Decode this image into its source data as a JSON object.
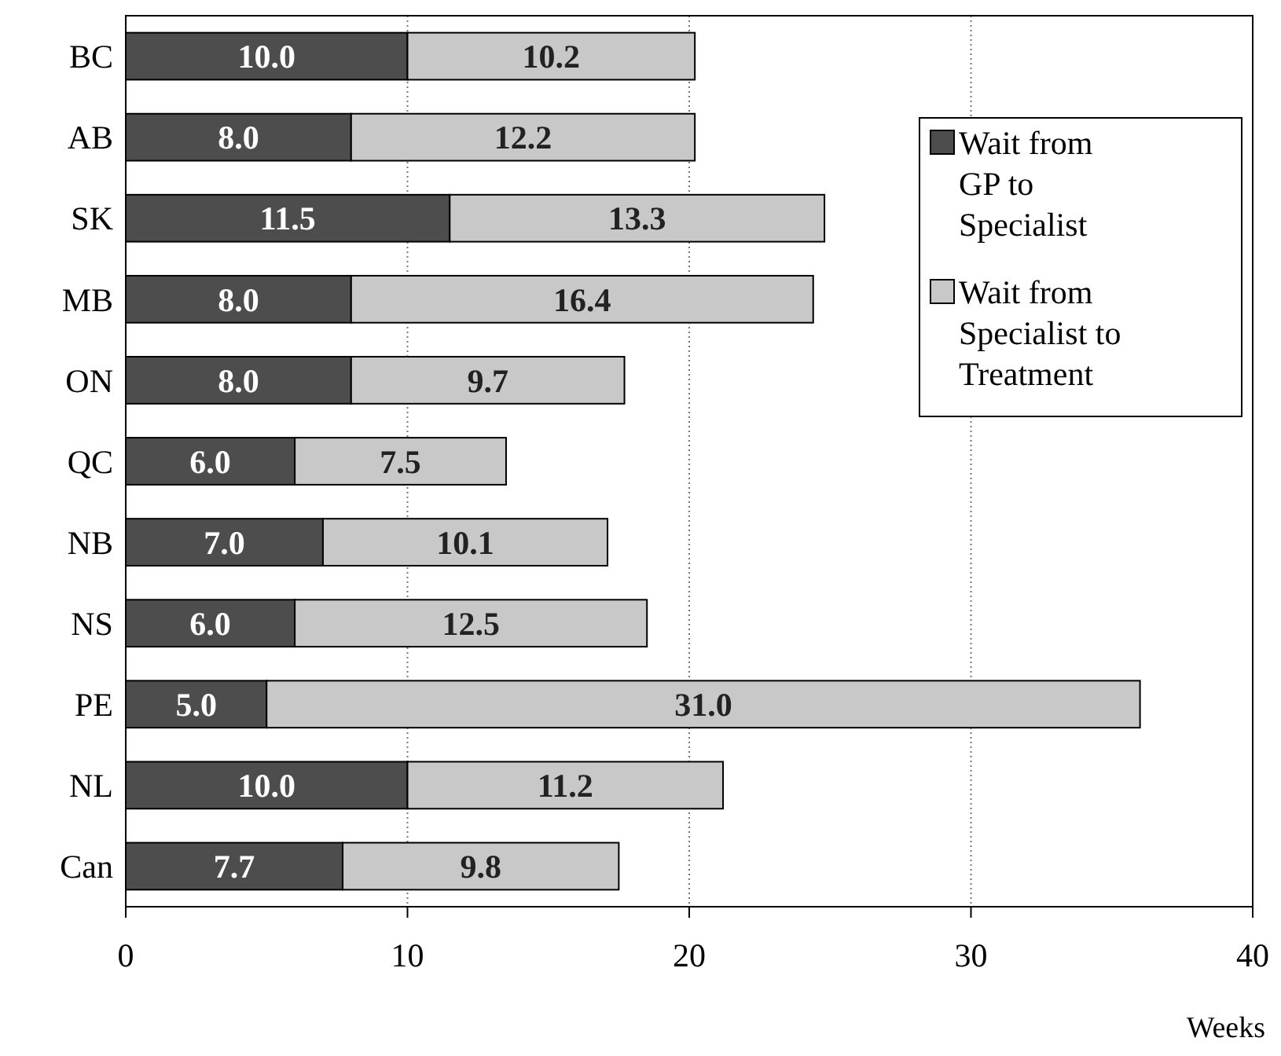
{
  "chart_data": {
    "type": "bar",
    "orientation": "horizontal",
    "stacked": true,
    "xlabel": "Weeks",
    "categories": [
      "BC",
      "AB",
      "SK",
      "MB",
      "ON",
      "QC",
      "NB",
      "NS",
      "PE",
      "NL",
      "Can"
    ],
    "series": [
      {
        "name": "Wait from GP to Specialist",
        "color": "#4d4d4d",
        "values": [
          10.0,
          8.0,
          11.5,
          8.0,
          8.0,
          6.0,
          7.0,
          6.0,
          5.0,
          10.0,
          7.7
        ],
        "value_labels": [
          "10.0",
          "8.0",
          "11.5",
          "8.0",
          "8.0",
          "6.0",
          "7.0",
          "6.0",
          "5.0",
          "10.0",
          "7.7"
        ]
      },
      {
        "name": "Wait from Specialist to Treatment",
        "color": "#c8c8c8",
        "values": [
          10.2,
          12.2,
          13.3,
          16.4,
          9.7,
          7.5,
          10.1,
          12.5,
          31.0,
          11.2,
          9.8
        ],
        "value_labels": [
          "10.2",
          "12.2",
          "13.3",
          "16.4",
          "9.7",
          "7.5",
          "10.1",
          "12.5",
          "31.0",
          "11.2",
          "9.8"
        ]
      }
    ],
    "xlim": [
      0,
      40
    ],
    "xticks": [
      0,
      10,
      20,
      30,
      40
    ],
    "grid": "x",
    "legend": "top right"
  }
}
